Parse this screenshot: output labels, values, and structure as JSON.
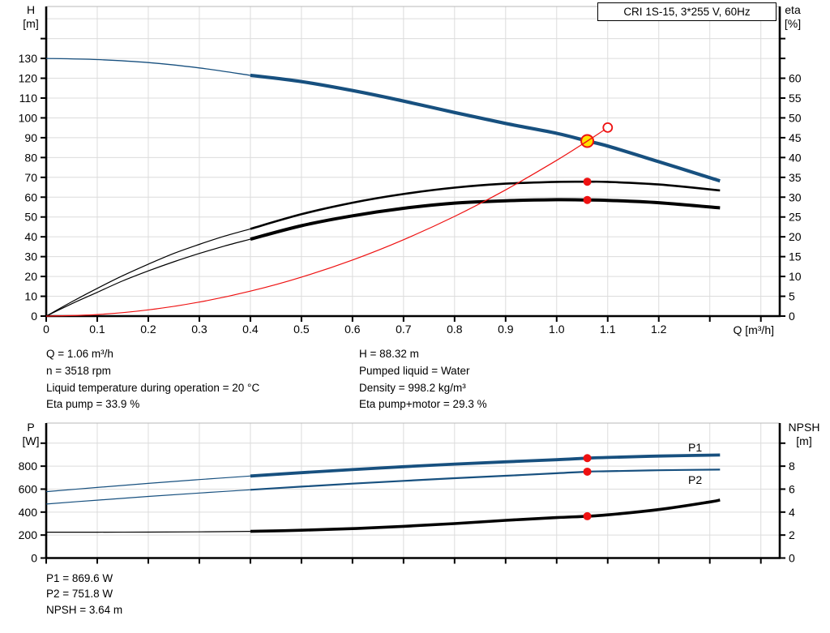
{
  "title_box": {
    "label": "CRI 1S-15, 3*255 V, 60Hz"
  },
  "axis_titles": {
    "top_left_line1": "H",
    "top_left_line2": "[m]",
    "top_right_line1": "eta",
    "top_right_line2": "[%]",
    "x_axis": "Q [m³/h]",
    "bottom_left_line1": "P",
    "bottom_left_line2": "[W]",
    "bottom_right_line1": "NPSH",
    "bottom_right_line2": "[m]"
  },
  "annotations": {
    "mid_left": [
      "Q = 1.06 m³/h",
      "n = 3518 rpm",
      "Liquid temperature during operation = 20 °C",
      "Eta pump = 33.9 %"
    ],
    "mid_right": [
      "H = 88.32 m",
      "Pumped liquid = Water",
      "Density = 998.2 kg/m³",
      "Eta pump+motor = 29.3 %"
    ],
    "bottom": [
      "P1 = 869.6 W",
      "P2 = 751.8 W",
      "NPSH = 3.64 m"
    ]
  },
  "colors": {
    "curve_blue": "#17507f",
    "curve_black": "#000000",
    "curve_red": "#ee1111",
    "duty_yellow": "#ffe100",
    "grid": "#dcdcdc",
    "frame_top": "#b8b8b8",
    "axis": "#000000"
  },
  "chart_data": [
    {
      "type": "line",
      "name": "head-efficiency-chart",
      "title": "CRI 1S-15, 3*255 V, 60Hz",
      "duty_point": {
        "Q": 1.06,
        "H": 88.32,
        "eta_pump": 33.9,
        "eta_pump_motor": 29.3
      },
      "x_axis": {
        "label": "Q [m³/h]",
        "min": 0,
        "max": 1.437,
        "ticks": [
          0,
          0.1,
          0.2,
          0.3,
          0.4,
          0.5,
          0.6,
          0.7,
          0.8,
          0.9,
          1.0,
          1.1,
          1.2,
          1.3,
          1.4
        ],
        "tick_labels": [
          [
            0,
            "0"
          ],
          [
            0.1,
            "0.1"
          ],
          [
            0.2,
            "0.2"
          ],
          [
            0.3,
            "0.3"
          ],
          [
            0.4,
            "0.4"
          ],
          [
            0.5,
            "0.5"
          ],
          [
            0.6,
            "0.6"
          ],
          [
            0.7,
            "0.7"
          ],
          [
            0.8,
            "0.8"
          ],
          [
            0.9,
            "0.9"
          ],
          [
            1.0,
            "1.0"
          ],
          [
            1.1,
            "1.1"
          ],
          [
            1.2,
            "1.2"
          ]
        ],
        "grid": [
          0.1,
          0.2,
          0.3,
          0.4,
          0.5,
          0.6,
          0.7,
          0.8,
          0.9,
          1.0,
          1.1,
          1.2,
          1.3,
          1.4
        ]
      },
      "left_axis": {
        "label": "H [m]",
        "min": 0,
        "max": 156.2,
        "ticks": [
          0,
          10,
          20,
          30,
          40,
          50,
          60,
          70,
          80,
          90,
          100,
          110,
          120,
          130,
          140
        ],
        "tick_labels": [
          [
            0,
            "0"
          ],
          [
            10,
            "10"
          ],
          [
            20,
            "20"
          ],
          [
            30,
            "30"
          ],
          [
            40,
            "40"
          ],
          [
            50,
            "50"
          ],
          [
            60,
            "60"
          ],
          [
            70,
            "70"
          ],
          [
            80,
            "80"
          ],
          [
            90,
            "90"
          ],
          [
            100,
            "100"
          ],
          [
            110,
            "110"
          ],
          [
            120,
            "120"
          ],
          [
            130,
            "130"
          ]
        ],
        "grid": [
          10,
          20,
          30,
          40,
          50,
          60,
          70,
          80,
          90,
          100,
          110,
          120,
          130,
          140,
          150
        ]
      },
      "right_axis": {
        "label": "eta [%]",
        "min": 0,
        "max": 78.1,
        "ticks": [
          0,
          5,
          10,
          15,
          20,
          25,
          30,
          35,
          40,
          45,
          50,
          55,
          60,
          65,
          70
        ],
        "tick_labels": [
          [
            0,
            "0"
          ],
          [
            5,
            "5"
          ],
          [
            10,
            "10"
          ],
          [
            15,
            "15"
          ],
          [
            20,
            "20"
          ],
          [
            25,
            "25"
          ],
          [
            30,
            "30"
          ],
          [
            35,
            "35"
          ],
          [
            40,
            "40"
          ],
          [
            45,
            "45"
          ],
          [
            50,
            "50"
          ],
          [
            55,
            "55"
          ],
          [
            60,
            "60"
          ]
        ],
        "grid": []
      },
      "series": [
        {
          "name": "head-curve-thin",
          "axis": "left",
          "color": "#17507f",
          "width": 1.3,
          "points": [
            [
              0,
              130
            ],
            [
              0.1,
              129.4
            ],
            [
              0.2,
              127.9
            ],
            [
              0.3,
              125.2
            ],
            [
              0.4,
              121.5
            ]
          ]
        },
        {
          "name": "head-curve",
          "axis": "left",
          "color": "#17507f",
          "width": 4.2,
          "points": [
            [
              0.4,
              121.5
            ],
            [
              0.5,
              118.3
            ],
            [
              0.6,
              113.8
            ],
            [
              0.7,
              108.5
            ],
            [
              0.8,
              102.7
            ],
            [
              0.9,
              97.2
            ],
            [
              1.0,
              92.2
            ],
            [
              1.06,
              88.32
            ],
            [
              1.1,
              85.8
            ],
            [
              1.2,
              77.9
            ],
            [
              1.3,
              69.8
            ],
            [
              1.32,
              68.2
            ]
          ]
        },
        {
          "name": "eta-pump-curve-thin",
          "axis": "right",
          "color": "#000000",
          "width": 1.2,
          "points": [
            [
              0,
              0
            ],
            [
              0.05,
              3.6
            ],
            [
              0.1,
              7
            ],
            [
              0.15,
              10.2
            ],
            [
              0.2,
              13.1
            ],
            [
              0.25,
              15.8
            ],
            [
              0.3,
              18.1
            ],
            [
              0.35,
              20.2
            ],
            [
              0.4,
              22
            ]
          ]
        },
        {
          "name": "eta-pump-curve",
          "axis": "right",
          "color": "#000000",
          "width": 2.6,
          "points": [
            [
              0.4,
              22
            ],
            [
              0.5,
              25.7
            ],
            [
              0.6,
              28.6
            ],
            [
              0.7,
              30.8
            ],
            [
              0.8,
              32.4
            ],
            [
              0.9,
              33.4
            ],
            [
              1.0,
              33.85
            ],
            [
              1.06,
              33.9
            ],
            [
              1.1,
              33.85
            ],
            [
              1.2,
              33.2
            ],
            [
              1.32,
              31.7
            ]
          ]
        },
        {
          "name": "eta-pump-motor-curve-thin",
          "axis": "right",
          "color": "#000000",
          "width": 1.2,
          "points": [
            [
              0,
              0
            ],
            [
              0.05,
              3.1
            ],
            [
              0.1,
              6
            ],
            [
              0.15,
              8.9
            ],
            [
              0.2,
              11.4
            ],
            [
              0.25,
              13.7
            ],
            [
              0.3,
              15.8
            ],
            [
              0.35,
              17.7
            ],
            [
              0.4,
              19.4
            ]
          ]
        },
        {
          "name": "eta-pump-motor-curve",
          "axis": "right",
          "color": "#000000",
          "width": 4,
          "points": [
            [
              0.4,
              19.4
            ],
            [
              0.5,
              22.8
            ],
            [
              0.6,
              25.3
            ],
            [
              0.7,
              27.2
            ],
            [
              0.8,
              28.5
            ],
            [
              0.9,
              29.1
            ],
            [
              1.0,
              29.35
            ],
            [
              1.06,
              29.3
            ],
            [
              1.1,
              29.2
            ],
            [
              1.2,
              28.6
            ],
            [
              1.32,
              27.3
            ]
          ]
        },
        {
          "name": "system-curve",
          "axis": "left",
          "color": "#ee1111",
          "width": 1.2,
          "points": [
            [
              0,
              0
            ],
            [
              0.1,
              0.79
            ],
            [
              0.2,
              3.14
            ],
            [
              0.3,
              7.07
            ],
            [
              0.4,
              12.58
            ],
            [
              0.5,
              19.65
            ],
            [
              0.6,
              28.3
            ],
            [
              0.7,
              38.52
            ],
            [
              0.8,
              50.31
            ],
            [
              0.9,
              63.67
            ],
            [
              1.0,
              78.6
            ],
            [
              1.06,
              88.32
            ],
            [
              1.093,
              93.9
            ]
          ]
        }
      ],
      "markers": [
        {
          "name": "duty-point",
          "style": "duty",
          "axis": "left",
          "q": 1.06,
          "value": 88.32
        },
        {
          "name": "requested-duty-point",
          "style": "open",
          "axis": "left",
          "q": 1.1,
          "value": 95.12
        },
        {
          "name": "eta-pump-point",
          "style": "dot",
          "axis": "right",
          "q": 1.06,
          "value": 33.9
        },
        {
          "name": "eta-pump-motor-point",
          "style": "dot",
          "axis": "right",
          "q": 1.06,
          "value": 29.3
        }
      ],
      "curve_labels": []
    },
    {
      "type": "line",
      "name": "power-npsh-chart",
      "title": "",
      "duty_point": {
        "Q": 1.06,
        "P1": 869.6,
        "P2": 751.8,
        "NPSH": 3.64
      },
      "x_axis": {
        "label": "",
        "min": 0,
        "max": 1.437,
        "ticks": [
          0,
          0.1,
          0.2,
          0.3,
          0.4,
          0.5,
          0.6,
          0.7,
          0.8,
          0.9,
          1.0,
          1.1,
          1.2,
          1.3,
          1.4
        ],
        "tick_labels": [],
        "grid": [
          0.1,
          0.2,
          0.3,
          0.4,
          0.5,
          0.6,
          0.7,
          0.8,
          0.9,
          1.0,
          1.1,
          1.2,
          1.3,
          1.4
        ]
      },
      "left_axis": {
        "label": "P [W]",
        "min": 0,
        "max": 1175,
        "ticks": [
          0,
          200,
          400,
          600,
          800,
          1000
        ],
        "tick_labels": [
          [
            0,
            "0"
          ],
          [
            200,
            "200"
          ],
          [
            400,
            "400"
          ],
          [
            600,
            "600"
          ],
          [
            800,
            "800"
          ]
        ],
        "grid": [
          200,
          400,
          600,
          800,
          1000
        ]
      },
      "right_axis": {
        "label": "NPSH [m]",
        "min": 0,
        "max": 11.75,
        "ticks": [
          0,
          2,
          4,
          6,
          8,
          10
        ],
        "tick_labels": [
          [
            0,
            "0"
          ],
          [
            2,
            "2"
          ],
          [
            4,
            "4"
          ],
          [
            6,
            "6"
          ],
          [
            8,
            "8"
          ]
        ],
        "grid": []
      },
      "series": [
        {
          "name": "p1-curve-thin",
          "axis": "left",
          "color": "#17507f",
          "width": 1.2,
          "points": [
            [
              0,
              578
            ],
            [
              0.1,
              615
            ],
            [
              0.2,
              650
            ],
            [
              0.3,
              683
            ],
            [
              0.4,
              714
            ]
          ]
        },
        {
          "name": "p1-curve",
          "axis": "left",
          "color": "#17507f",
          "width": 3.8,
          "points": [
            [
              0.4,
              714
            ],
            [
              0.5,
              743
            ],
            [
              0.6,
              770
            ],
            [
              0.7,
              795
            ],
            [
              0.8,
              818
            ],
            [
              0.9,
              838
            ],
            [
              1.0,
              856
            ],
            [
              1.06,
              869.6
            ],
            [
              1.1,
              876
            ],
            [
              1.2,
              888
            ],
            [
              1.32,
              897
            ]
          ]
        },
        {
          "name": "p2-curve-thin",
          "axis": "left",
          "color": "#17507f",
          "width": 1.2,
          "points": [
            [
              0,
              470
            ],
            [
              0.1,
              504
            ],
            [
              0.2,
              536
            ],
            [
              0.3,
              566
            ],
            [
              0.4,
              594
            ]
          ]
        },
        {
          "name": "p2-curve",
          "axis": "left",
          "color": "#17507f",
          "width": 2.2,
          "points": [
            [
              0.4,
              594
            ],
            [
              0.5,
              622
            ],
            [
              0.6,
              648
            ],
            [
              0.7,
              672
            ],
            [
              0.8,
              695
            ],
            [
              0.9,
              716
            ],
            [
              1.0,
              738
            ],
            [
              1.06,
              751.8
            ],
            [
              1.1,
              756
            ],
            [
              1.2,
              764
            ],
            [
              1.32,
              770
            ]
          ]
        },
        {
          "name": "npsh-curve-thin",
          "axis": "right",
          "color": "#000000",
          "width": 1.2,
          "points": [
            [
              0,
              2.25
            ],
            [
              0.1,
              2.25
            ],
            [
              0.2,
              2.26
            ],
            [
              0.3,
              2.28
            ],
            [
              0.4,
              2.32
            ]
          ]
        },
        {
          "name": "npsh-curve",
          "axis": "right",
          "color": "#000000",
          "width": 3.6,
          "points": [
            [
              0.4,
              2.32
            ],
            [
              0.5,
              2.42
            ],
            [
              0.6,
              2.56
            ],
            [
              0.7,
              2.76
            ],
            [
              0.8,
              3.0
            ],
            [
              0.9,
              3.28
            ],
            [
              1.0,
              3.52
            ],
            [
              1.06,
              3.64
            ],
            [
              1.1,
              3.76
            ],
            [
              1.2,
              4.22
            ],
            [
              1.3,
              4.88
            ],
            [
              1.32,
              5.05
            ]
          ]
        }
      ],
      "markers": [
        {
          "name": "p1-point",
          "style": "dot",
          "axis": "left",
          "q": 1.06,
          "value": 869.6
        },
        {
          "name": "p2-point",
          "style": "dot",
          "axis": "left",
          "q": 1.06,
          "value": 751.8
        },
        {
          "name": "npsh-point",
          "style": "dot",
          "axis": "right",
          "q": 1.06,
          "value": 3.64
        }
      ],
      "curve_labels": [
        {
          "text": "P1",
          "x": 849,
          "y": 557,
          "color": "#17507f"
        },
        {
          "text": "P2",
          "x": 849,
          "y": 597,
          "color": "#17507f"
        }
      ]
    }
  ]
}
